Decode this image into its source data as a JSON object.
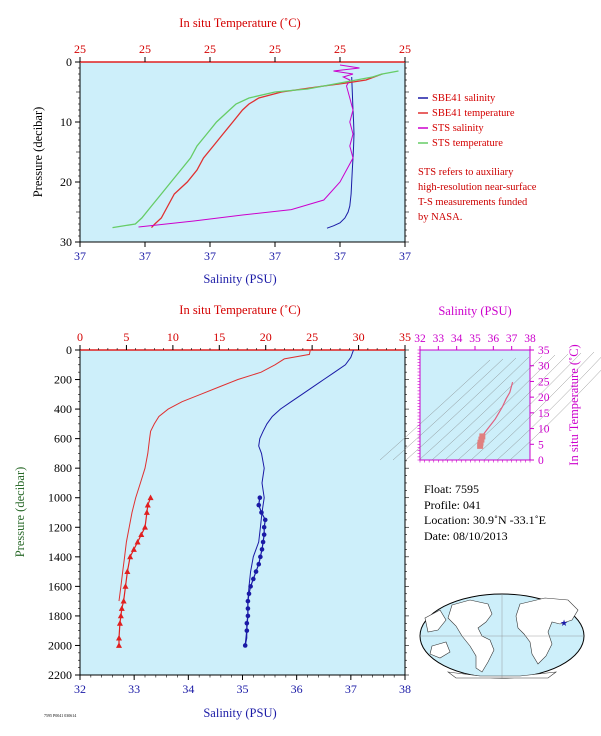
{
  "chart_data": [
    {
      "type": "line",
      "xlabel_top": "In situ Temperature (˚C)",
      "xlabel_bottom": "Salinity (PSU)",
      "ylabel": "Pressure (decibar)",
      "top_ticks": [
        "25",
        "25",
        "25",
        "25",
        "25",
        "25"
      ],
      "bottom_ticks": [
        "37",
        "37",
        "37",
        "37",
        "37",
        "37"
      ],
      "y_ticks": [
        "0",
        "10",
        "20",
        "30"
      ],
      "ylim": [
        0,
        30
      ],
      "legend": [
        "SBE41 salinity",
        "SBE41 temperature",
        "STS salinity",
        "STS temperature"
      ],
      "series": [
        {
          "name": "SBE41 salinity",
          "color": "#1a1aa6",
          "x": [
            0.836,
            0.838,
            0.84,
            0.842,
            0.843,
            0.842,
            0.84,
            0.838,
            0.836,
            0.834,
            0.83,
            0.825,
            0.815,
            0.8,
            0.78,
            0.76
          ],
          "y": [
            2.5,
            5,
            8,
            10,
            12,
            14,
            16,
            18,
            20,
            22,
            24,
            25,
            26,
            26.8,
            27.3,
            27.7
          ]
        },
        {
          "name": "SBE41 temperature",
          "color": "#e03030",
          "x": [
            0.93,
            0.88,
            0.82,
            0.75,
            0.62,
            0.55,
            0.52,
            0.5,
            0.47,
            0.44,
            0.41,
            0.38,
            0.36,
            0.33,
            0.31,
            0.29,
            0.27,
            0.25,
            0.23,
            0.22
          ],
          "y": [
            2,
            3,
            3.5,
            4,
            5,
            6,
            7,
            8,
            10,
            12,
            14,
            16,
            18,
            20,
            21,
            22,
            24,
            26,
            27,
            27.6
          ]
        },
        {
          "name": "STS salinity",
          "color": "#cc00cc",
          "x": [
            0.8,
            0.86,
            0.78,
            0.84,
            0.81,
            0.83,
            0.82,
            0.83,
            0.84,
            0.83,
            0.84,
            0.83,
            0.84,
            0.82,
            0.8,
            0.75,
            0.65,
            0.5,
            0.35,
            0.18
          ],
          "y": [
            0.5,
            1.0,
            1.5,
            2.0,
            2.5,
            3.0,
            4.0,
            6.0,
            8.0,
            10.0,
            12.0,
            14.0,
            16.0,
            18.0,
            20.0,
            23.0,
            24.6,
            25.5,
            26.5,
            27.5
          ]
        },
        {
          "name": "STS temperature",
          "color": "#66cc66",
          "x": [
            0.98,
            0.93,
            0.9,
            0.8,
            0.7,
            0.6,
            0.52,
            0.48,
            0.46,
            0.42,
            0.39,
            0.36,
            0.34,
            0.31,
            0.28,
            0.25,
            0.22,
            0.19,
            0.17,
            0.1
          ],
          "y": [
            1.5,
            2.0,
            2.5,
            3.5,
            4.5,
            5.0,
            6.0,
            7.0,
            8.0,
            10.0,
            12.0,
            14.0,
            16.0,
            18.0,
            20.0,
            22.0,
            24.0,
            26.0,
            27.0,
            27.6
          ]
        }
      ],
      "note": [
        "STS refers to auxiliary",
        "high-resolution near-surface",
        "T-S measurements funded",
        "by NASA."
      ]
    },
    {
      "type": "line",
      "xlabel_top": "In situ Temperature (˚C)",
      "xlabel_bottom": "Salinity (PSU)",
      "ylabel": "Pressure (decibar)",
      "top_ticks": [
        "0",
        "5",
        "10",
        "15",
        "20",
        "25",
        "30",
        "35"
      ],
      "bottom_ticks": [
        "32",
        "33",
        "34",
        "35",
        "36",
        "37",
        "38"
      ],
      "y_ticks": [
        "0",
        "200",
        "400",
        "600",
        "800",
        "1000",
        "1200",
        "1400",
        "1600",
        "1800",
        "2000",
        "2200"
      ],
      "xlim_top": [
        0,
        35
      ],
      "xlim_bottom": [
        32,
        38
      ],
      "ylim": [
        0,
        2200
      ],
      "series": [
        {
          "name": "temperature",
          "color": "#e03030",
          "x": [
            24.8,
            24.7,
            22.0,
            21.0,
            19.5,
            17.0,
            15.0,
            13.0,
            11.0,
            9.5,
            8.5,
            8.0,
            7.6,
            7.5,
            7.3,
            7.0,
            6.5,
            6.0,
            5.6,
            5.3,
            5.0,
            4.8,
            4.6,
            4.4,
            4.2
          ],
          "y": [
            0,
            30,
            60,
            100,
            150,
            200,
            250,
            300,
            350,
            400,
            450,
            500,
            550,
            600,
            700,
            800,
            900,
            1000,
            1100,
            1200,
            1300,
            1400,
            1500,
            1600,
            1700
          ]
        },
        {
          "name": "salinity",
          "color": "#1a1aa6",
          "x": [
            37.05,
            37.0,
            36.9,
            36.7,
            36.5,
            36.3,
            36.1,
            35.9,
            35.7,
            35.55,
            35.45,
            35.38,
            35.32,
            35.3,
            35.35,
            35.4,
            35.36,
            35.4,
            35.38,
            35.36,
            35.33,
            35.3,
            35.2,
            35.15,
            35.12,
            35.1,
            35.1,
            35.1,
            35.08,
            35.08,
            35.05
          ],
          "y": [
            0,
            50,
            100,
            150,
            200,
            250,
            300,
            350,
            400,
            450,
            500,
            550,
            600,
            650,
            700,
            800,
            900,
            1000,
            1050,
            1100,
            1200,
            1300,
            1400,
            1500,
            1600,
            1700,
            1750,
            1800,
            1900,
            1950,
            2000
          ]
        }
      ],
      "markers": {
        "temperature": {
          "x": [
            7.6,
            7.3,
            7.2,
            7.0,
            6.6,
            6.2,
            5.8,
            5.4,
            5.1,
            4.9,
            4.7,
            4.5,
            4.4,
            4.3,
            4.2,
            4.2
          ],
          "y": [
            1000,
            1050,
            1100,
            1200,
            1250,
            1300,
            1350,
            1400,
            1500,
            1600,
            1700,
            1750,
            1800,
            1850,
            1950,
            2000
          ]
        },
        "salinity": {
          "x": [
            35.32,
            35.3,
            35.35,
            35.42,
            35.4,
            35.4,
            35.38,
            35.36,
            35.33,
            35.3,
            35.25,
            35.2,
            35.15,
            35.12,
            35.1,
            35.1,
            35.1,
            35.08,
            35.08,
            35.05
          ],
          "y": [
            1000,
            1050,
            1100,
            1150,
            1200,
            1250,
            1300,
            1350,
            1400,
            1450,
            1500,
            1550,
            1600,
            1650,
            1700,
            1750,
            1800,
            1850,
            1900,
            2000
          ]
        }
      }
    },
    {
      "type": "line",
      "xlabel_top": "Salinity (PSU)",
      "ylabel_right": "In situ Temperature (˚C)",
      "top_ticks": [
        "32",
        "33",
        "34",
        "35",
        "36",
        "37",
        "38"
      ],
      "right_ticks": [
        "0",
        "5",
        "10",
        "15",
        "20",
        "25",
        "30",
        "35"
      ],
      "xlim": [
        32,
        38
      ],
      "ylim": [
        0,
        35
      ],
      "series": [
        {
          "name": "T-S",
          "color": "#e06080",
          "x": [
            37.05,
            36.9,
            36.7,
            36.5,
            36.3,
            36.1,
            35.9,
            35.7,
            35.5,
            35.4,
            35.35,
            35.3,
            35.28
          ],
          "y": [
            24.8,
            21.5,
            19.5,
            17.0,
            15.0,
            13.0,
            11.5,
            10.0,
            8.5,
            7.5,
            6.5,
            5.5,
            4.5
          ]
        }
      ]
    }
  ],
  "info": {
    "float": "Float:  7595",
    "profile": "Profile:  041",
    "location": "Location:  30.9˚N  -33.1˚E",
    "date": "Date:  08/10/2013"
  },
  "footer_small": "7595 P0041 030614"
}
